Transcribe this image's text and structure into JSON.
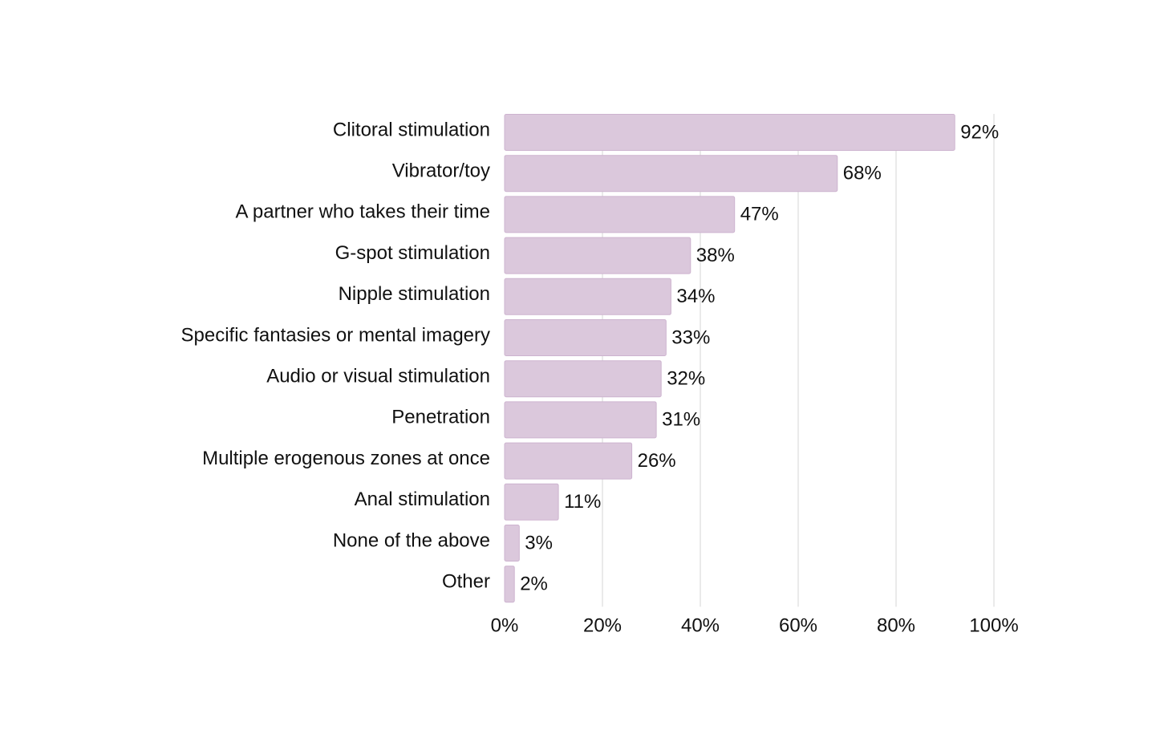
{
  "chart_data": {
    "type": "bar",
    "orientation": "horizontal",
    "categories": [
      "Clitoral stimulation",
      "Vibrator/toy",
      "A partner who takes their time",
      "G-spot stimulation",
      "Nipple stimulation",
      "Specific fantasies or mental imagery",
      "Audio or visual stimulation",
      "Penetration",
      "Multiple erogenous zones at once",
      "Anal stimulation",
      "None of the above",
      "Other"
    ],
    "values": [
      92,
      68,
      47,
      38,
      34,
      33,
      32,
      31,
      26,
      11,
      3,
      2
    ],
    "value_labels": [
      "92%",
      "68%",
      "47%",
      "38%",
      "34%",
      "33%",
      "32%",
      "31%",
      "26%",
      "11%",
      "3%",
      "2%"
    ],
    "xlim": [
      0,
      100
    ],
    "x_ticks": [
      0,
      20,
      40,
      60,
      80,
      100
    ],
    "x_tick_labels": [
      "0%",
      "20%",
      "40%",
      "60%",
      "80%",
      "100%"
    ],
    "grid": "vertical",
    "legend": "none",
    "colors": {
      "bar_fill": "#dbc8dc",
      "bar_stroke": "#cdb3cf",
      "grid": "#dcdcdc",
      "text": "#111111"
    }
  }
}
